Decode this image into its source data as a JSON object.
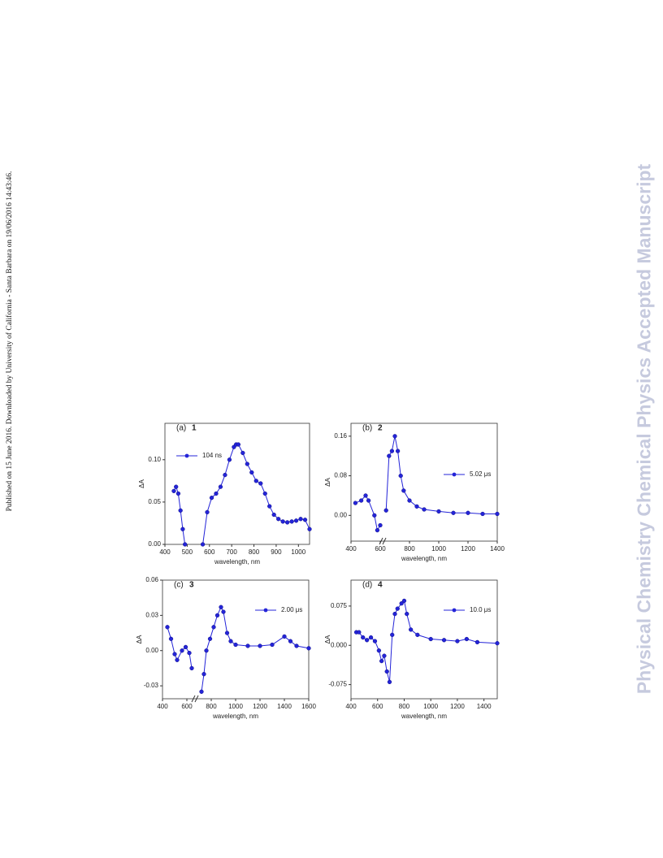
{
  "margin_note": "Published on 15 June 2016. Downloaded by University of California - Santa Barbara on 19/06/2016 14:43:46.",
  "watermark": "Physical Chemistry Chemical Physics Accepted Manuscript",
  "chart_data": [
    {
      "type": "line",
      "panel_label": "(a)",
      "title": "1",
      "x_label": "wavelength, nm",
      "y_label": "ΔA",
      "legend": "upper-left",
      "x": [
        440,
        450,
        460,
        470,
        480,
        490,
        530,
        570,
        590,
        610,
        630,
        650,
        670,
        690,
        710,
        720,
        730,
        750,
        770,
        790,
        810,
        830,
        850,
        870,
        890,
        910,
        930,
        950,
        970,
        990,
        1010,
        1030,
        1050
      ],
      "series": [
        {
          "name": "104 ns",
          "color": "#2424d8",
          "values": [
            0.063,
            0.068,
            0.06,
            0.04,
            0.018,
            0,
            null,
            0,
            0.038,
            0.055,
            0.06,
            0.068,
            0.082,
            0.1,
            0.115,
            0.118,
            0.118,
            0.108,
            0.095,
            0.085,
            0.075,
            0.072,
            0.06,
            0.045,
            0.035,
            0.03,
            0.027,
            0.026,
            0.027,
            0.028,
            0.03,
            0.029,
            0.018
          ]
        }
      ],
      "xlim": [
        400,
        1050
      ],
      "xticks": [
        400,
        500,
        600,
        700,
        800,
        900,
        1000
      ],
      "ylim": [
        0,
        0.143
      ],
      "yticks": [
        {
          "value": 0,
          "label": "0.00"
        },
        {
          "value": 0.05,
          "label": "0.05"
        },
        {
          "value": 0.1,
          "label": "0.10"
        }
      ]
    },
    {
      "type": "line",
      "panel_label": "(b)",
      "title": "2",
      "x_label": "wavelength, nm",
      "y_label": "ΔA",
      "legend": "right",
      "x": [
        430,
        470,
        500,
        520,
        560,
        580,
        600,
        620,
        640,
        660,
        680,
        700,
        720,
        740,
        760,
        800,
        850,
        900,
        1000,
        1100,
        1200,
        1300,
        1400
      ],
      "series": [
        {
          "name": "5.02 μs",
          "color": "#2424d8",
          "values": [
            0.025,
            0.03,
            0.04,
            0.03,
            0.0,
            -0.03,
            -0.02,
            null,
            0.01,
            0.12,
            0.13,
            0.16,
            0.13,
            0.08,
            0.05,
            0.03,
            0.018,
            0.012,
            0.008,
            0.005,
            0.005,
            0.003,
            0.003
          ]
        }
      ],
      "xlim": [
        400,
        1400
      ],
      "xticks": [
        400,
        600,
        800,
        1000,
        1200,
        1400
      ],
      "ylim": [
        -0.052,
        0.186
      ],
      "yticks": [
        {
          "value": 0,
          "label": "0.00"
        },
        {
          "value": 0.08,
          "label": "0.08"
        },
        {
          "value": 0.16,
          "label": "0.16"
        }
      ]
    },
    {
      "type": "line",
      "panel_label": "(c)",
      "title": "3",
      "x_label": "wavelength, nm",
      "y_label": "ΔA",
      "legend": "upper-right",
      "x": [
        440,
        470,
        500,
        520,
        560,
        590,
        620,
        640,
        680,
        720,
        740,
        760,
        790,
        820,
        850,
        880,
        900,
        930,
        960,
        1000,
        1100,
        1200,
        1300,
        1400,
        1450,
        1500,
        1600
      ],
      "series": [
        {
          "name": "2.00 μs",
          "color": "#2424d8",
          "values": [
            0.02,
            0.01,
            -0.003,
            -0.008,
            0.0,
            0.003,
            -0.002,
            -0.015,
            null,
            -0.035,
            -0.02,
            0.0,
            0.01,
            0.02,
            0.03,
            0.037,
            0.033,
            0.015,
            0.008,
            0.005,
            0.004,
            0.004,
            0.005,
            0.012,
            0.008,
            0.004,
            0.002
          ]
        }
      ],
      "xlim": [
        400,
        1600
      ],
      "xticks": [
        400,
        600,
        800,
        1000,
        1200,
        1400,
        1600
      ],
      "ylim": [
        -0.041,
        0.06
      ],
      "yticks": [
        {
          "value": 0.06,
          "label": "0.06"
        },
        {
          "value": 0.03,
          "label": "0.03"
        },
        {
          "value": 0,
          "label": "0.00"
        },
        {
          "value": -0.03,
          "label": "-0.03"
        }
      ]
    },
    {
      "type": "line",
      "panel_label": "(d)",
      "title": "4",
      "x_label": "wavelength, nm",
      "y_label": "ΔA",
      "legend": "upper-right",
      "x": [
        440,
        460,
        490,
        520,
        550,
        580,
        610,
        630,
        650,
        670,
        690,
        710,
        730,
        750,
        780,
        800,
        820,
        850,
        900,
        1000,
        1100,
        1200,
        1270,
        1350,
        1500
      ],
      "series": [
        {
          "name": "10.0 μs",
          "color": "#2424d8",
          "values": [
            0.025,
            0.025,
            0.015,
            0.01,
            0.015,
            0.008,
            -0.01,
            -0.03,
            -0.02,
            -0.05,
            -0.07,
            0.02,
            0.06,
            0.07,
            0.08,
            0.085,
            0.06,
            0.03,
            0.02,
            0.012,
            0.01,
            0.008,
            0.012,
            0.006,
            0.004
          ]
        }
      ],
      "xlim": [
        400,
        1500
      ],
      "xticks": [
        400,
        600,
        800,
        1000,
        1200,
        1400
      ],
      "ylim": [
        -0.102,
        0.1245
      ],
      "yticks": [
        {
          "value": 0.075,
          "label": "0.075"
        },
        {
          "value": 0,
          "label": "0.000"
        },
        {
          "value": -0.075,
          "label": "-0.075"
        }
      ]
    }
  ]
}
